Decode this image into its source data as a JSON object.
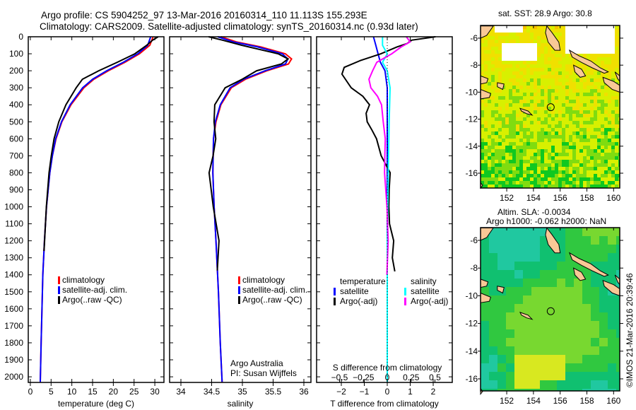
{
  "title": {
    "line1": "Argo profile: CS 5904252_97 13-Mar-2016 20160314_110 11.113S 155.293E",
    "line2": "Climatology: CARS2009. Satellite-adjusted climatology: synTS_20160314.nc (0.93d later)"
  },
  "annotation": {
    "institution": "Argo Australia",
    "pi": "PI: Susan Wijffels"
  },
  "footer": {
    "copyright": "©IMOS 21-Mar-2016 20:39:46"
  },
  "colors": {
    "climatology": "#ff0000",
    "satellite": "#0000ff",
    "argo": "#000000",
    "sal_satellite": "#00ffff",
    "sal_argo": "#ff00ff",
    "land": "#f9c896"
  },
  "chart_data": [
    {
      "type": "line",
      "id": "temperature",
      "xlabel": "temperature (deg C)",
      "ylabel": "",
      "xlim": [
        -0.5,
        32.2
      ],
      "ylim": [
        2033,
        0
      ],
      "xticks": [
        0,
        5,
        10,
        15,
        20,
        25,
        30
      ],
      "yticks": [
        0,
        100,
        200,
        300,
        400,
        500,
        600,
        700,
        800,
        900,
        1000,
        1100,
        1200,
        1300,
        1400,
        1500,
        1600,
        1700,
        1800,
        1900,
        2000
      ],
      "legend": [
        "climatology",
        "satellite-adj. clim.",
        "Argo(..raw -QC)"
      ],
      "series": [
        {
          "name": "climatology",
          "color": "#ff0000",
          "depth": [
            0,
            50,
            100,
            150,
            200,
            250,
            300,
            400,
            500,
            600,
            700,
            800,
            1000,
            1200,
            1400,
            1600,
            1800,
            2030
          ],
          "values": [
            29.6,
            28.8,
            26.3,
            22.8,
            18.8,
            15.3,
            12.9,
            9.8,
            7.6,
            6.2,
            5.3,
            4.7,
            3.9,
            3.4,
            3.0,
            2.8,
            2.6,
            2.4
          ]
        },
        {
          "name": "satellite-adj. clim.",
          "color": "#0000ff",
          "depth": [
            0,
            50,
            100,
            150,
            200,
            250,
            300,
            400,
            500,
            600,
            700,
            800,
            1000,
            1200,
            1400,
            1600,
            1800,
            2030
          ],
          "values": [
            29.0,
            28.3,
            25.9,
            22.4,
            18.4,
            15.0,
            12.6,
            9.6,
            7.5,
            6.1,
            5.3,
            4.7,
            3.9,
            3.4,
            3.0,
            2.8,
            2.6,
            2.4
          ]
        },
        {
          "name": "Argo(..raw -QC)",
          "color": "#000000",
          "depth": [
            0,
            20,
            50,
            100,
            150,
            200,
            250,
            300,
            400,
            500,
            600,
            700,
            800,
            1000,
            1200,
            1260
          ],
          "values": [
            30.8,
            29.5,
            28.0,
            25.2,
            21.0,
            16.5,
            12.5,
            11.0,
            8.6,
            6.9,
            5.7,
            5.0,
            4.5,
            3.9,
            3.4,
            3.3
          ]
        }
      ]
    },
    {
      "type": "line",
      "id": "salinity",
      "xlabel": "salinity",
      "ylabel": "",
      "xlim": [
        33.816,
        36.115
      ],
      "ylim": [
        2033,
        0
      ],
      "xticks": [
        34,
        34.5,
        35,
        35.5,
        36
      ],
      "yticks": [
        0,
        100,
        200,
        300,
        400,
        500,
        600,
        700,
        800,
        900,
        1000,
        1100,
        1200,
        1300,
        1400,
        1500,
        1600,
        1700,
        1800,
        1900,
        2000
      ],
      "legend": [
        "climatology",
        "satellite-adj. clim.",
        "Argo(..raw -QC)"
      ],
      "series": [
        {
          "name": "climatology",
          "color": "#ff0000",
          "depth": [
            0,
            30,
            60,
            100,
            130,
            160,
            200,
            250,
            300,
            400,
            500,
            600,
            800,
            1000,
            1200,
            1500,
            1800,
            2030
          ],
          "values": [
            34.65,
            34.9,
            35.3,
            35.7,
            35.8,
            35.75,
            35.4,
            35.05,
            34.82,
            34.65,
            34.57,
            34.53,
            34.52,
            34.54,
            34.57,
            34.61,
            34.64,
            34.67
          ]
        },
        {
          "name": "satellite-adj. clim.",
          "color": "#0000ff",
          "depth": [
            0,
            30,
            60,
            100,
            130,
            160,
            200,
            250,
            300,
            400,
            500,
            600,
            800,
            1000,
            1200,
            1500,
            1800,
            2030
          ],
          "values": [
            34.6,
            34.85,
            35.25,
            35.65,
            35.74,
            35.7,
            35.37,
            35.02,
            34.8,
            34.64,
            34.56,
            34.53,
            34.52,
            34.54,
            34.57,
            34.61,
            34.64,
            34.67
          ]
        },
        {
          "name": "Argo(..raw -QC)",
          "color": "#000000",
          "depth": [
            0,
            20,
            50,
            100,
            130,
            160,
            200,
            250,
            300,
            400,
            500,
            600,
            700,
            800,
            1000,
            1200,
            1375
          ],
          "values": [
            34.45,
            34.7,
            34.95,
            35.6,
            35.7,
            35.6,
            35.2,
            34.95,
            34.72,
            34.6,
            34.55,
            34.52,
            34.5,
            34.5,
            34.54,
            34.57,
            34.58
          ]
        }
      ]
    },
    {
      "type": "line",
      "id": "difference",
      "xlabel": "T difference from climatology",
      "x2label": "S difference from climatology",
      "ylabel": "",
      "xlim": [
        -3.077,
        2.83
      ],
      "x2lim": [
        -0.5,
        0.5
      ],
      "ylim": [
        2033,
        0
      ],
      "xticks": [
        -2,
        -1,
        0,
        1,
        2
      ],
      "x2ticks": [
        "-0.5",
        "-0.25",
        "0",
        "0.25",
        "0.5"
      ],
      "yticks": [
        0,
        100,
        200,
        300,
        400,
        500,
        600,
        700,
        800,
        900,
        1000,
        1100,
        1200,
        1300,
        1400,
        1500,
        1600,
        1700,
        1800,
        1900,
        2000
      ],
      "legend": {
        "temperature": "temperature",
        "t_sat": "satellite",
        "t_argo": "Argo(-adj)",
        "salinity": "salinity",
        "s_sat": "satellite",
        "s_argo": "Argo(-adj)"
      },
      "series": [
        {
          "name": "T satellite",
          "color": "#0000ff",
          "axis": "T",
          "depth": [
            0,
            50,
            100,
            150,
            200,
            300,
            500,
            800,
            1200,
            2030
          ],
          "values": [
            -0.6,
            -0.5,
            -0.4,
            -0.3,
            -0.1,
            0,
            0,
            0,
            0,
            0
          ]
        },
        {
          "name": "T Argo(-adj)",
          "color": "#000000",
          "axis": "T",
          "depth": [
            0,
            20,
            40,
            60,
            100,
            140,
            180,
            220,
            260,
            300,
            350,
            400,
            450,
            500,
            550,
            600,
            700,
            800,
            900,
            1000,
            1100,
            1200,
            1300,
            1380
          ],
          "values": [
            2.1,
            1.1,
            0.8,
            0.5,
            -0.2,
            -1.1,
            -1.8,
            -1.9,
            -1.7,
            -1.5,
            -1.0,
            -0.8,
            -1.0,
            -0.9,
            -0.6,
            -0.4,
            -0.3,
            0.05,
            0.1,
            0.15,
            0.1,
            0.2,
            0.2,
            0.25
          ]
        },
        {
          "name": "S satellite",
          "color": "#00ffff",
          "axis": "S",
          "depth": [
            0,
            50,
            100,
            150,
            200,
            300,
            500,
            800,
            1200,
            2030
          ],
          "values": [
            -0.05,
            -0.05,
            0.0,
            -0.05,
            0.0,
            0.03,
            0.02,
            0.01,
            0.0,
            0.0
          ]
        },
        {
          "name": "S Argo(-adj)",
          "color": "#ff00ff",
          "axis": "S",
          "depth": [
            0,
            30,
            60,
            100,
            150,
            200,
            250,
            300,
            350,
            400,
            500,
            600,
            700,
            800,
            1000,
            1200,
            1400
          ],
          "values": [
            0.2,
            0.25,
            0.15,
            0.05,
            -0.1,
            -0.15,
            -0.2,
            -0.18,
            -0.1,
            -0.05,
            -0.04,
            -0.03,
            -0.03,
            -0.02,
            0.0,
            0.0,
            0.0
          ]
        }
      ]
    }
  ],
  "maps": [
    {
      "id": "sst",
      "title": "sat. SST: 28.9 Argo: 30.8",
      "lonlim": [
        150.04,
        160.46
      ],
      "latlim": [
        -5.06,
        -17.1
      ],
      "xticks": [
        152,
        154,
        156,
        158,
        160
      ],
      "yticks": [
        -6,
        -8,
        -10,
        -12,
        -14,
        -16
      ],
      "argo_position": {
        "lon": 155.293,
        "lat": -11.113
      }
    },
    {
      "id": "sla",
      "title": "Altim. SLA: -0.0034",
      "subtitle": "Argo h1000: -0.062 h2000: NaN",
      "lonlim": [
        150.04,
        160.46
      ],
      "latlim": [
        -5.08,
        -16.87
      ],
      "xticks": [
        152,
        154,
        156,
        158,
        160
      ],
      "yticks": [
        -6,
        -8,
        -10,
        -12,
        -14,
        -16
      ],
      "argo_position": {
        "lon": 155.293,
        "lat": -11.113
      }
    }
  ]
}
